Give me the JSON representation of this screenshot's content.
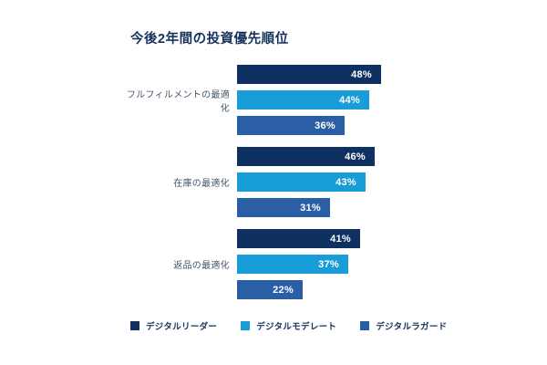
{
  "page": {
    "background": "#ffffff"
  },
  "chart_data": {
    "type": "bar",
    "orientation": "horizontal",
    "title": "今後2年間の投資優先順位",
    "categories": [
      "フルフィルメントの最適化",
      "在庫の最適化",
      "返品の最適化"
    ],
    "series": [
      {
        "name": "デジタルリーダー",
        "color": "#0e3161",
        "values": [
          48,
          46,
          41
        ]
      },
      {
        "name": "デジタルモデレート",
        "color": "#189dd9",
        "values": [
          44,
          43,
          37
        ]
      },
      {
        "name": "デジタルラガード",
        "color": "#2a5fa5",
        "values": [
          36,
          31,
          22
        ]
      }
    ],
    "value_suffix": "%",
    "xlim": [
      0,
      48
    ],
    "grid": false,
    "legend_position": "bottom",
    "title_color": "#16325c",
    "category_label_color": "#44566b",
    "value_label_color": "#ffffff"
  }
}
